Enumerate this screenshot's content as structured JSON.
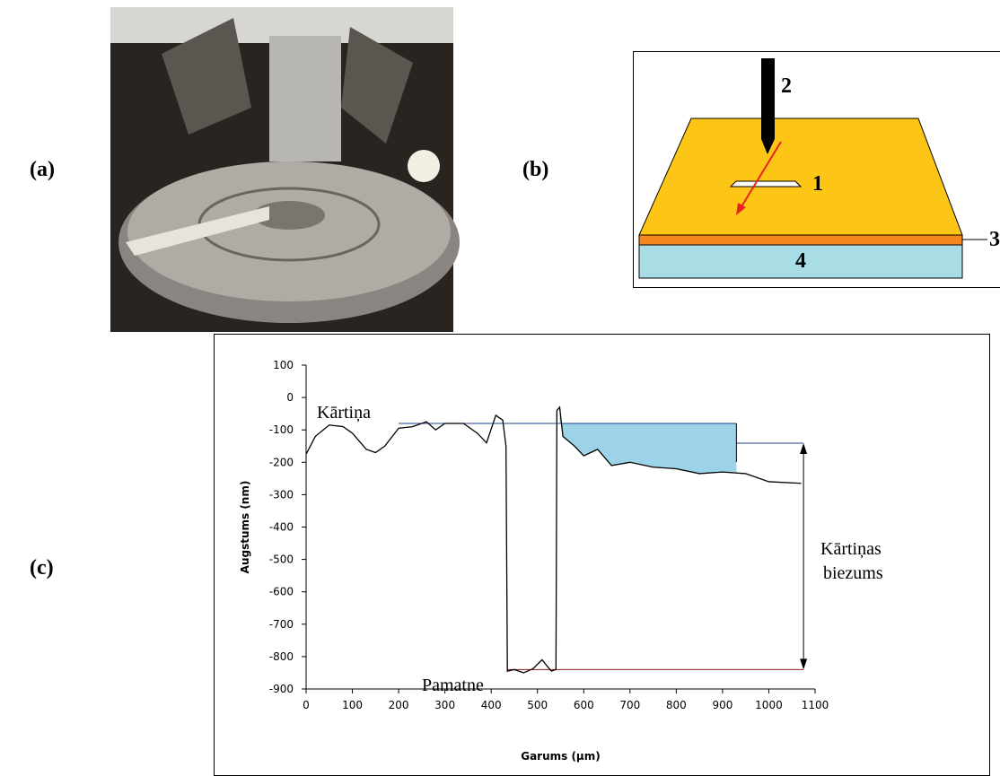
{
  "panel_labels": [
    "(a)",
    "(b)",
    "(c)"
  ],
  "diagram": {
    "labels": [
      "1",
      "2",
      "3",
      "4"
    ]
  },
  "chart_data": {
    "type": "line",
    "y_label": "Augstums (nm)",
    "x_label": "Garums (µm)",
    "annotations": {
      "film": "Kārtiņa",
      "substrate": "Pamatne",
      "thickness": [
        "Kārtiņas",
        "biezums"
      ]
    },
    "x": [
      0,
      20,
      50,
      80,
      100,
      130,
      150,
      170,
      200,
      230,
      260,
      280,
      300,
      340,
      370,
      390,
      410,
      425,
      432,
      435,
      450,
      470,
      490,
      510,
      530,
      540,
      542,
      548,
      555,
      580,
      600,
      630,
      660,
      700,
      750,
      800,
      850,
      900,
      950,
      1000,
      1070
    ],
    "values": [
      -175,
      -120,
      -85,
      -90,
      -110,
      -160,
      -170,
      -150,
      -95,
      -90,
      -75,
      -100,
      -80,
      -80,
      -110,
      -140,
      -55,
      -70,
      -150,
      -845,
      -840,
      -850,
      -838,
      -810,
      -845,
      -840,
      -40,
      -30,
      -120,
      -150,
      -180,
      -160,
      -210,
      -200,
      -215,
      -220,
      -235,
      -230,
      -235,
      -260,
      -265
    ],
    "color": "#000000",
    "reference": {
      "film_level": -80,
      "substrate_level": -840,
      "film_x": [
        200,
        930
      ],
      "substrate_x": [
        435,
        1075
      ],
      "thickness_x": 1075,
      "fill_color": "#9dd3e8",
      "film_color": "#1f3f8f",
      "substrate_color": "#8b1a1a"
    },
    "xlim": [
      0,
      1100
    ],
    "ylim": [
      -900,
      100
    ],
    "xticks": [
      0,
      100,
      200,
      300,
      400,
      500,
      600,
      700,
      800,
      900,
      1000,
      1100
    ],
    "yticks": [
      -900,
      -800,
      -700,
      -600,
      -500,
      -400,
      -300,
      -200,
      -100,
      0,
      100
    ]
  }
}
